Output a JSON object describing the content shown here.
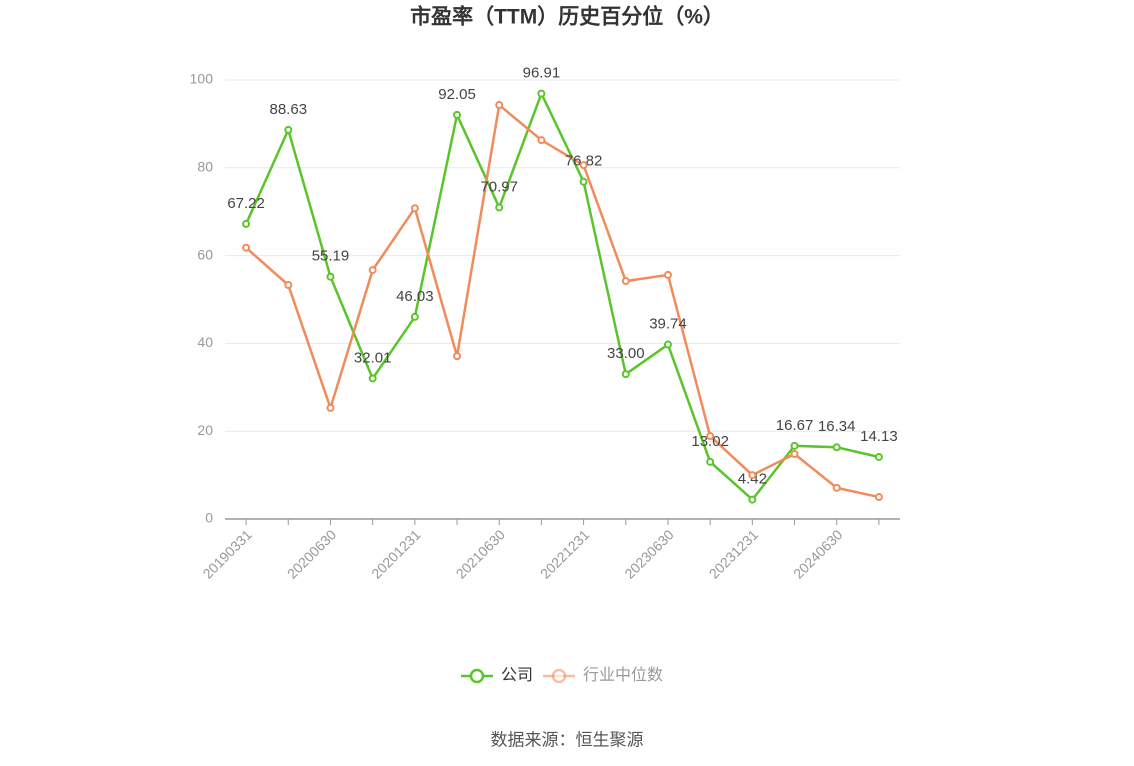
{
  "chart_data": {
    "type": "line",
    "title": "市盈率（TTM）历史百分位（%）",
    "categories": [
      "20190331",
      null,
      "20200630",
      null,
      "20201231",
      null,
      "20210630",
      null,
      "20221231",
      null,
      "20230630",
      null,
      "20231231",
      null,
      "20240630",
      null
    ],
    "series": [
      {
        "name": "公司",
        "color": "#5ac52a",
        "values": [
          67.22,
          88.63,
          55.19,
          32.01,
          46.03,
          92.05,
          70.97,
          96.91,
          76.82,
          33.0,
          39.74,
          13.02,
          4.42,
          16.67,
          16.34,
          14.13
        ],
        "value_labels": [
          "67.22",
          "88.63",
          "55.19",
          "32.01",
          "46.03",
          "92.05",
          "70.97",
          "96.91",
          "76.82",
          "33.00",
          "39.74",
          "13.02",
          "4.42",
          "16.67",
          "16.34",
          "14.13"
        ]
      },
      {
        "name": "行业中位数",
        "color": "#f08c5c",
        "values": [
          61.8,
          53.3,
          25.3,
          56.7,
          70.8,
          37.1,
          94.3,
          86.3,
          80.6,
          54.2,
          55.6,
          18.9,
          10.0,
          14.8,
          7.1,
          5.0
        ]
      }
    ],
    "ylim": [
      0,
      100
    ],
    "yticks": [
      0,
      20,
      40,
      60,
      80,
      100
    ],
    "grid": true,
    "legend": "bottom",
    "source": "数据来源：恒生聚源"
  }
}
